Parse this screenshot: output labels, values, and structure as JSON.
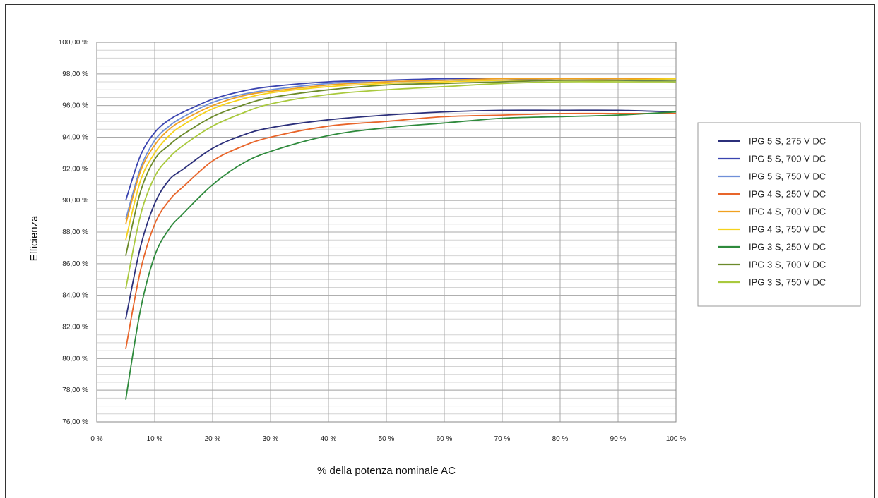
{
  "chart_data": {
    "type": "line",
    "title": "",
    "xlabel": "% della potenza nominale AC",
    "ylabel": "Efficienza",
    "xlim": [
      0,
      100
    ],
    "ylim": [
      76,
      100
    ],
    "x_ticks": [
      0,
      10,
      20,
      30,
      40,
      50,
      60,
      70,
      80,
      90,
      100
    ],
    "x_tick_labels": [
      "0 %",
      "10 %",
      "20 %",
      "30 %",
      "40 %",
      "50 %",
      "60 %",
      "70 %",
      "80 %",
      "90 %",
      "100 %"
    ],
    "y_ticks": [
      76,
      78,
      80,
      82,
      84,
      86,
      88,
      90,
      92,
      94,
      96,
      98,
      100
    ],
    "y_tick_labels": [
      "76,00 %",
      "78,00 %",
      "80,00 %",
      "82,00 %",
      "84,00 %",
      "86,00 %",
      "88,00 %",
      "90,00 %",
      "92,00 %",
      "94,00 %",
      "96,00 %",
      "98,00 %",
      "100,00 %"
    ],
    "grid": true,
    "legend_position": "right",
    "x": [
      5,
      7.5,
      10,
      12.5,
      15,
      20,
      25,
      30,
      40,
      50,
      60,
      70,
      80,
      90,
      100
    ],
    "series": [
      {
        "name": "IPG 5 S, 275 V DC",
        "color": "#2b2f7a",
        "values": [
          82.5,
          87.0,
          89.8,
          91.3,
          92.0,
          93.3,
          94.1,
          94.6,
          95.1,
          95.4,
          95.6,
          95.7,
          95.7,
          95.7,
          95.6
        ]
      },
      {
        "name": "IPG 5 S, 700 V DC",
        "color": "#3a44b0",
        "values": [
          90.0,
          92.8,
          94.3,
          95.1,
          95.6,
          96.4,
          96.9,
          97.2,
          97.5,
          97.6,
          97.7,
          97.7,
          97.6,
          97.6,
          97.5
        ]
      },
      {
        "name": "IPG 5 S, 750 V DC",
        "color": "#6f8fd8",
        "values": [
          88.8,
          92.0,
          93.8,
          94.7,
          95.3,
          96.2,
          96.7,
          97.0,
          97.4,
          97.5,
          97.6,
          97.6,
          97.6,
          97.6,
          97.6
        ]
      },
      {
        "name": "IPG 4 S, 250 V DC",
        "color": "#e8652a",
        "values": [
          80.6,
          85.5,
          88.5,
          90.0,
          90.9,
          92.5,
          93.4,
          94.0,
          94.7,
          95.0,
          95.3,
          95.4,
          95.5,
          95.5,
          95.5
        ]
      },
      {
        "name": "IPG 4 S, 700 V DC",
        "color": "#f0a020",
        "values": [
          88.5,
          91.8,
          93.5,
          94.5,
          95.1,
          96.0,
          96.6,
          96.9,
          97.3,
          97.5,
          97.6,
          97.7,
          97.7,
          97.7,
          97.7
        ]
      },
      {
        "name": "IPG 4 S, 750 V DC",
        "color": "#f5d21c",
        "values": [
          87.5,
          91.2,
          93.0,
          94.1,
          94.8,
          95.8,
          96.4,
          96.8,
          97.2,
          97.4,
          97.5,
          97.6,
          97.6,
          97.6,
          97.7
        ]
      },
      {
        "name": "IPG 3 S, 250 V DC",
        "color": "#2e8a3c",
        "values": [
          77.4,
          83.0,
          86.5,
          88.2,
          89.2,
          91.0,
          92.3,
          93.1,
          94.1,
          94.6,
          94.9,
          95.2,
          95.3,
          95.4,
          95.6
        ]
      },
      {
        "name": "IPG 3 S, 700 V DC",
        "color": "#6b8a2a",
        "values": [
          86.5,
          90.5,
          92.6,
          93.5,
          94.2,
          95.3,
          96.0,
          96.5,
          97.0,
          97.3,
          97.4,
          97.5,
          97.6,
          97.6,
          97.6
        ]
      },
      {
        "name": "IPG 3 S, 750 V DC",
        "color": "#a9c93d",
        "values": [
          84.4,
          89.0,
          91.5,
          92.7,
          93.5,
          94.7,
          95.5,
          96.1,
          96.7,
          97.0,
          97.2,
          97.4,
          97.5,
          97.5,
          97.5
        ]
      }
    ]
  }
}
